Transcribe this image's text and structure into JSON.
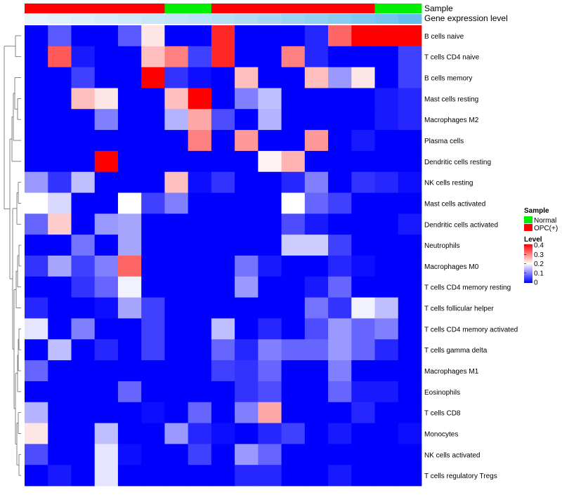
{
  "annotations": {
    "sample_label": "Sample",
    "expression_label": "Gene expression level"
  },
  "legend": {
    "sample": {
      "title": "Sample",
      "items": [
        {
          "label": "Normal",
          "color": "#00ee00"
        },
        {
          "label": "OPC(+)",
          "color": "#ff0000"
        }
      ]
    },
    "level": {
      "title": "Level",
      "ticks": [
        "0.4",
        "0.3",
        "0.2",
        "0.1",
        "0"
      ]
    }
  },
  "colors": {
    "low": "#0000ff",
    "mid": "#ffffff",
    "high": "#ff0000",
    "normal": "#00ee00",
    "opc": "#ff0000"
  },
  "chart_data": {
    "type": "heatmap",
    "rows": [
      "B cells naive",
      "T cells CD4 naive",
      "B cells memory",
      "Mast cells resting",
      "Macrophages M2",
      "Plasma cells",
      "Dendritic cells resting",
      "NK cells resting",
      "Mast cells activated",
      "Dendritic cells activated",
      "Neutrophils",
      "Macrophages M0",
      "T cells CD4 memory resting",
      "T cells follicular helper",
      "T cells CD4 memory activated",
      "T cells gamma delta",
      "Macrophages M1",
      "Eosinophils",
      "T cells CD8",
      "Monocytes",
      "NK cells activated",
      "T cells regulatory  Tregs"
    ],
    "sample_groups": [
      "OPC(+)",
      "OPC(+)",
      "OPC(+)",
      "OPC(+)",
      "OPC(+)",
      "OPC(+)",
      "Normal",
      "Normal",
      "OPC(+)",
      "OPC(+)",
      "OPC(+)",
      "OPC(+)",
      "OPC(+)",
      "OPC(+)",
      "OPC(+)",
      "Normal",
      "Normal"
    ],
    "expression_level": [
      0.0,
      0.02,
      0.04,
      0.06,
      0.08,
      0.1,
      0.12,
      0.14,
      0.16,
      0.18,
      0.21,
      0.24,
      0.27,
      0.3,
      0.33,
      0.36,
      0.4
    ],
    "values": [
      [
        0.0,
        0.07,
        0.0,
        0.0,
        0.07,
        0.22,
        0.0,
        0.0,
        0.37,
        0.0,
        0.0,
        0.0,
        0.03,
        0.32,
        0.4,
        0.4,
        0.4
      ],
      [
        0.0,
        0.33,
        0.02,
        0.0,
        0.0,
        0.25,
        0.3,
        0.05,
        0.37,
        0.0,
        0.0,
        0.3,
        0.03,
        0.0,
        0.0,
        0.0,
        0.05
      ],
      [
        0.0,
        0.0,
        0.05,
        0.0,
        0.0,
        0.4,
        0.04,
        0.01,
        0.0,
        0.25,
        0.0,
        0.0,
        0.25,
        0.12,
        0.22,
        0.0,
        0.05
      ],
      [
        0.0,
        0.0,
        0.25,
        0.22,
        0.0,
        0.0,
        0.25,
        0.4,
        0.0,
        0.1,
        0.15,
        0.0,
        0.0,
        0.0,
        0.0,
        0.02,
        0.03
      ],
      [
        0.0,
        0.0,
        0.0,
        0.1,
        0.0,
        0.0,
        0.14,
        0.27,
        0.06,
        0.0,
        0.14,
        0.0,
        0.0,
        0.0,
        0.0,
        0.02,
        0.03
      ],
      [
        0.0,
        0.0,
        0.0,
        0.0,
        0.0,
        0.0,
        0.0,
        0.3,
        0.0,
        0.28,
        0.0,
        0.0,
        0.28,
        0.0,
        0.02,
        0.0,
        0.0
      ],
      [
        0.0,
        0.0,
        0.0,
        0.4,
        0.0,
        0.0,
        0.0,
        0.0,
        0.0,
        0.0,
        0.21,
        0.26,
        0.0,
        0.0,
        0.0,
        0.0,
        0.0
      ],
      [
        0.12,
        0.04,
        0.15,
        0.0,
        0.0,
        0.0,
        0.25,
        0.01,
        0.04,
        0.0,
        0.0,
        0.03,
        0.1,
        0.0,
        0.04,
        0.03,
        0.01
      ],
      [
        0.2,
        0.17,
        0.0,
        0.0,
        0.2,
        0.05,
        0.1,
        0.0,
        0.0,
        0.0,
        0.0,
        0.2,
        0.08,
        0.05,
        0.0,
        0.0,
        0.0
      ],
      [
        0.08,
        0.24,
        0.0,
        0.12,
        0.13,
        0.0,
        0.0,
        0.0,
        0.0,
        0.0,
        0.0,
        0.06,
        0.02,
        0.0,
        0.0,
        0.0,
        0.02
      ],
      [
        0.0,
        0.0,
        0.09,
        0.0,
        0.13,
        0.0,
        0.0,
        0.0,
        0.0,
        0.0,
        0.0,
        0.16,
        0.16,
        0.05,
        0.0,
        0.0,
        0.0
      ],
      [
        0.04,
        0.13,
        0.05,
        0.1,
        0.32,
        0.0,
        0.0,
        0.0,
        0.0,
        0.09,
        0.02,
        0.0,
        0.0,
        0.03,
        0.01,
        0.0,
        0.0
      ],
      [
        0.0,
        0.0,
        0.04,
        0.08,
        0.19,
        0.0,
        0.0,
        0.0,
        0.0,
        0.12,
        0.0,
        0.0,
        0.02,
        0.08,
        0.0,
        0.0,
        0.0
      ],
      [
        0.03,
        0.0,
        0.0,
        0.01,
        0.13,
        0.05,
        0.0,
        0.0,
        0.0,
        0.0,
        0.0,
        0.0,
        0.09,
        0.04,
        0.19,
        0.15,
        0.0
      ],
      [
        0.18,
        0.0,
        0.1,
        0.0,
        0.0,
        0.05,
        0.0,
        0.0,
        0.15,
        0.0,
        0.03,
        0.0,
        0.06,
        0.12,
        0.08,
        0.1,
        0.0
      ],
      [
        0.0,
        0.15,
        0.0,
        0.03,
        0.0,
        0.05,
        0.0,
        0.0,
        0.08,
        0.03,
        0.1,
        0.08,
        0.08,
        0.12,
        0.08,
        0.03,
        0.0
      ],
      [
        0.08,
        0.0,
        0.0,
        0.0,
        0.0,
        0.0,
        0.0,
        0.0,
        0.05,
        0.04,
        0.08,
        0.0,
        0.0,
        0.1,
        0.0,
        0.0,
        0.0
      ],
      [
        0.0,
        0.0,
        0.0,
        0.0,
        0.08,
        0.0,
        0.0,
        0.0,
        0.0,
        0.04,
        0.06,
        0.0,
        0.0,
        0.08,
        0.02,
        0.02,
        0.0
      ],
      [
        0.14,
        0.0,
        0.0,
        0.0,
        0.0,
        0.01,
        0.0,
        0.08,
        0.0,
        0.1,
        0.27,
        0.0,
        0.0,
        0.0,
        0.03,
        0.0,
        0.0
      ],
      [
        0.22,
        0.0,
        0.0,
        0.15,
        0.0,
        0.0,
        0.12,
        0.03,
        0.01,
        0.0,
        0.03,
        0.05,
        0.0,
        0.02,
        0.0,
        0.0,
        0.01
      ],
      [
        0.06,
        0.0,
        0.0,
        0.18,
        0.01,
        0.0,
        0.0,
        0.05,
        0.0,
        0.12,
        0.08,
        0.0,
        0.0,
        0.0,
        0.0,
        0.0,
        0.0
      ],
      [
        0.0,
        0.02,
        0.0,
        0.18,
        0.0,
        0.0,
        0.0,
        0.0,
        0.0,
        0.03,
        0.03,
        0.0,
        0.0,
        0.02,
        0.0,
        0.0,
        0.0
      ]
    ],
    "color_range": [
      0,
      0.4
    ],
    "legend_placement": "right"
  }
}
